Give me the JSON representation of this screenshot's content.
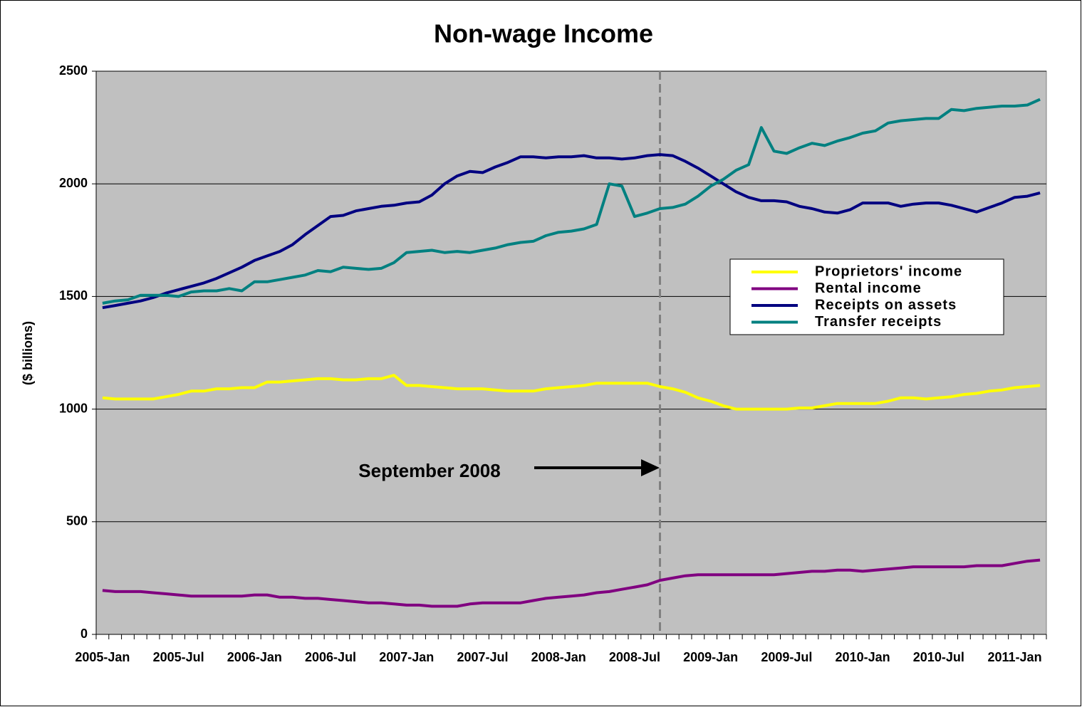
{
  "chart_data": {
    "type": "line",
    "title": "Non-wage Income",
    "y_label": "($ billions)",
    "annotation": "September 2008",
    "categories": [
      "2005-Jan",
      null,
      null,
      null,
      null,
      null,
      "2005-Jul",
      null,
      null,
      null,
      null,
      null,
      "2006-Jan",
      null,
      null,
      null,
      null,
      null,
      "2006-Jul",
      null,
      null,
      null,
      null,
      null,
      "2007-Jan",
      null,
      null,
      null,
      null,
      null,
      "2007-Jul",
      null,
      null,
      null,
      null,
      null,
      "2008-Jan",
      null,
      null,
      null,
      null,
      null,
      "2008-Jul",
      null,
      null,
      null,
      null,
      null,
      "2009-Jan",
      null,
      null,
      null,
      null,
      null,
      "2009-Jul",
      null,
      null,
      null,
      null,
      null,
      "2010-Jan",
      null,
      null,
      null,
      null,
      null,
      "2010-Jul",
      null,
      null,
      null,
      null,
      null,
      "2011-Jan",
      null,
      null
    ],
    "series": [
      {
        "name": "Proprietors' income",
        "color": "#ffff00",
        "values": [
          1050,
          1045,
          1045,
          1045,
          1045,
          1055,
          1065,
          1080,
          1080,
          1090,
          1090,
          1095,
          1095,
          1120,
          1120,
          1125,
          1130,
          1135,
          1135,
          1130,
          1130,
          1135,
          1135,
          1150,
          1105,
          1105,
          1100,
          1095,
          1090,
          1090,
          1090,
          1085,
          1080,
          1080,
          1080,
          1090,
          1095,
          1100,
          1105,
          1115,
          1115,
          1115,
          1115,
          1115,
          1100,
          1090,
          1075,
          1050,
          1035,
          1015,
          1000,
          1000,
          1000,
          1000,
          1000,
          1005,
          1005,
          1015,
          1025,
          1025,
          1025,
          1025,
          1035,
          1050,
          1050,
          1045,
          1050,
          1055,
          1065,
          1070,
          1080,
          1085,
          1095,
          1100,
          1105
        ]
      },
      {
        "name": "Rental income",
        "color": "#800080",
        "values": [
          195,
          190,
          190,
          190,
          185,
          180,
          175,
          170,
          170,
          170,
          170,
          170,
          175,
          175,
          165,
          165,
          160,
          160,
          155,
          150,
          145,
          140,
          140,
          135,
          130,
          130,
          125,
          125,
          125,
          135,
          140,
          140,
          140,
          140,
          150,
          160,
          165,
          170,
          175,
          185,
          190,
          200,
          210,
          220,
          240,
          250,
          260,
          265,
          265,
          265,
          265,
          265,
          265,
          265,
          270,
          275,
          280,
          280,
          285,
          285,
          280,
          285,
          290,
          295,
          300,
          300,
          300,
          300,
          300,
          305,
          305,
          305,
          315,
          325,
          330
        ]
      },
      {
        "name": "Receipts on assets",
        "color": "#000080",
        "values": [
          1450,
          1460,
          1470,
          1480,
          1495,
          1515,
          1530,
          1545,
          1560,
          1580,
          1605,
          1630,
          1660,
          1680,
          1700,
          1730,
          1775,
          1815,
          1855,
          1860,
          1880,
          1890,
          1900,
          1905,
          1915,
          1920,
          1950,
          2000,
          2035,
          2055,
          2050,
          2075,
          2095,
          2120,
          2120,
          2115,
          2120,
          2120,
          2125,
          2115,
          2115,
          2110,
          2115,
          2125,
          2130,
          2125,
          2100,
          2070,
          2035,
          2000,
          1965,
          1940,
          1925,
          1925,
          1920,
          1900,
          1890,
          1875,
          1870,
          1885,
          1915,
          1915,
          1915,
          1900,
          1910,
          1915,
          1915,
          1905,
          1890,
          1875,
          1895,
          1915,
          1940,
          1945,
          1960
        ]
      },
      {
        "name": "Transfer receipts",
        "color": "#008080",
        "values": [
          1470,
          1480,
          1485,
          1505,
          1505,
          1505,
          1500,
          1520,
          1525,
          1525,
          1535,
          1525,
          1565,
          1565,
          1575,
          1585,
          1595,
          1615,
          1610,
          1630,
          1625,
          1620,
          1625,
          1650,
          1695,
          1700,
          1705,
          1695,
          1700,
          1695,
          1705,
          1715,
          1730,
          1740,
          1745,
          1770,
          1785,
          1790,
          1800,
          1820,
          2000,
          1990,
          1855,
          1870,
          1890,
          1895,
          1910,
          1945,
          1990,
          2020,
          2060,
          2085,
          2250,
          2145,
          2135,
          2160,
          2180,
          2170,
          2190,
          2205,
          2225,
          2235,
          2270,
          2280,
          2285,
          2290,
          2290,
          2330,
          2325,
          2335,
          2340,
          2345,
          2345,
          2350,
          2375
        ]
      }
    ],
    "ylim": [
      0,
      2500
    ],
    "yticks": [
      0,
      500,
      1000,
      1500,
      2000,
      2500
    ],
    "grid": true,
    "legend": "right"
  }
}
